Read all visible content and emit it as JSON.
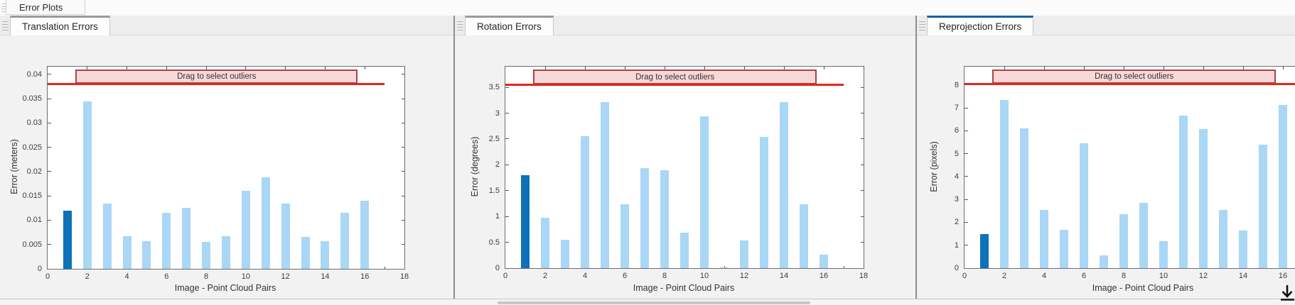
{
  "window": {
    "figure_tab": "Error Plots"
  },
  "panels": [
    {
      "tab": "Translation Errors",
      "active": false
    },
    {
      "tab": "Rotation Errors",
      "active": false
    },
    {
      "tab": "Reprojection Errors",
      "active": true
    }
  ],
  "palette": {
    "bar_light": "#a9d7f5",
    "bar_highlight": "#0d72b9",
    "threshold_red": "#e12720",
    "band_fill": "#f7d8d8",
    "band_border": "#a94444",
    "active_tab_accent": "#1062a8",
    "inactive_tab_accent": "#9a9a9a"
  },
  "icons": {
    "bottom_right": "download-arrow-icon",
    "panel_handles": "drag-grip-icon"
  },
  "chart_data": [
    {
      "type": "bar",
      "title": "Translation Errors",
      "xlabel": "Image - Point Cloud Pairs",
      "ylabel": "Error (meters)",
      "x": [
        1,
        2,
        3,
        4,
        5,
        6,
        7,
        8,
        9,
        10,
        11,
        12,
        13,
        14,
        15,
        16
      ],
      "values": [
        0.012,
        0.0345,
        0.0135,
        0.0067,
        0.0057,
        0.0116,
        0.0126,
        0.0055,
        0.0067,
        0.016,
        0.0188,
        0.0134,
        0.0066,
        0.0057,
        0.0115,
        0.014
      ],
      "highlight_index": 0,
      "xlim": [
        0,
        18
      ],
      "ylim": [
        0,
        0.0416
      ],
      "xticks": [
        0,
        2,
        4,
        6,
        8,
        10,
        12,
        14,
        16,
        18
      ],
      "yticks": [
        0,
        0.005,
        0.01,
        0.015,
        0.02,
        0.025,
        0.03,
        0.035,
        0.04
      ],
      "ytick_labels": [
        "0",
        "0.005",
        "0.01",
        "0.015",
        "0.02",
        "0.025",
        "0.03",
        "0.035",
        "0.04"
      ],
      "threshold": {
        "value": 0.0381,
        "x0": 0,
        "x1": 17
      },
      "band": {
        "x0": 1.4,
        "x1": 15.65,
        "y0": 0.0381,
        "y1": 0.041,
        "label": "Drag to select outliers"
      },
      "grid": false,
      "legend": null
    },
    {
      "type": "bar",
      "title": "Rotation Errors",
      "xlabel": "Image - Point Cloud Pairs",
      "ylabel": "Error (degrees)",
      "x": [
        1,
        2,
        3,
        4,
        5,
        6,
        7,
        8,
        9,
        10,
        11,
        12,
        13,
        14,
        15,
        16
      ],
      "values": [
        1.8,
        0.97,
        0.55,
        2.55,
        3.22,
        1.24,
        1.94,
        1.9,
        0.68,
        2.94,
        0.02,
        0.54,
        2.54,
        3.22,
        1.24,
        0.26
      ],
      "highlight_index": 0,
      "xlim": [
        0,
        18
      ],
      "ylim": [
        0,
        3.9
      ],
      "xticks": [
        0,
        2,
        4,
        6,
        8,
        10,
        12,
        14,
        16,
        18
      ],
      "yticks": [
        0,
        0.5,
        1,
        1.5,
        2,
        2.5,
        3,
        3.5
      ],
      "ytick_labels": [
        "0",
        "0.5",
        "1",
        "1.5",
        "2",
        "2.5",
        "3",
        "3.5"
      ],
      "threshold": {
        "value": 3.56,
        "x0": 0,
        "x1": 17
      },
      "band": {
        "x0": 1.4,
        "x1": 15.65,
        "y0": 3.56,
        "y1": 3.84,
        "label": "Drag to select outliers"
      },
      "grid": false,
      "legend": null
    },
    {
      "type": "bar",
      "title": "Reprojection Errors",
      "xlabel": "Image - Point Cloud Pairs",
      "ylabel": "Error (pixels)",
      "x": [
        1,
        2,
        3,
        4,
        5,
        6,
        7,
        8,
        9,
        10,
        11,
        12,
        13,
        14,
        15,
        16
      ],
      "values": [
        1.5,
        7.35,
        6.1,
        2.55,
        1.68,
        5.45,
        0.55,
        2.35,
        2.85,
        1.18,
        6.65,
        6.08,
        2.53,
        1.65,
        5.38,
        7.12
      ],
      "highlight_index": 0,
      "xlim": [
        0,
        18
      ],
      "ylim": [
        0,
        8.8
      ],
      "xticks": [
        0,
        2,
        4,
        6,
        8,
        10,
        12,
        14,
        16,
        18
      ],
      "yticks": [
        0,
        1,
        2,
        3,
        4,
        5,
        6,
        7,
        8
      ],
      "ytick_labels": [
        "0",
        "1",
        "2",
        "3",
        "4",
        "5",
        "6",
        "7",
        "8"
      ],
      "threshold": {
        "value": 8.06,
        "x0": 0,
        "x1": 17
      },
      "band": {
        "x0": 1.4,
        "x1": 15.65,
        "y0": 8.06,
        "y1": 8.67,
        "label": "Drag to select outliers"
      },
      "grid": false,
      "legend": null
    }
  ]
}
